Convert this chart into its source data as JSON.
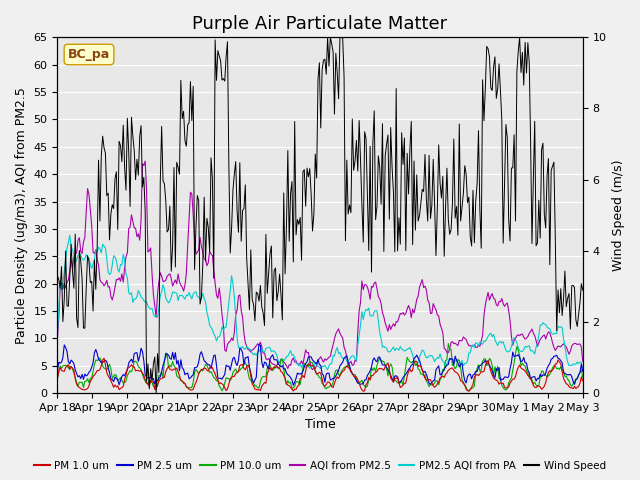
{
  "title": "Purple Air Particulate Matter",
  "location_label": "BC_pa",
  "xlabel": "Time",
  "ylabel_left": "Particle Density (ug/m3), AQI from PM2.5",
  "ylabel_right": "Wind Speed (m/s)",
  "ylim_left": [
    0,
    65
  ],
  "ylim_right": [
    0,
    10.0
  ],
  "yticks_left": [
    0,
    5,
    10,
    15,
    20,
    25,
    30,
    35,
    40,
    45,
    50,
    55,
    60,
    65
  ],
  "yticks_right": [
    0.0,
    2.0,
    4.0,
    6.0,
    8.0,
    10.0
  ],
  "xtick_positions": [
    0,
    1,
    2,
    3,
    4,
    5,
    6,
    7,
    8,
    9,
    10,
    11,
    12,
    13,
    14,
    15
  ],
  "xtick_labels": [
    "Apr 18",
    "Apr 19",
    "Apr 20",
    "Apr 21",
    "Apr 22",
    "Apr 23",
    "Apr 24",
    "Apr 25",
    "Apr 26",
    "Apr 27",
    "Apr 28",
    "Apr 29",
    "Apr 30",
    "May 1",
    "May 2",
    "May 3"
  ],
  "n_points": 384,
  "background_color": "#f0f0f0",
  "plot_bg_color": "#e8e8e8",
  "colors": {
    "pm1": "#cc0000",
    "pm25": "#0000cc",
    "pm10": "#00aa00",
    "aqi_pm25": "#aa00aa",
    "aqi_pa": "#00cccc",
    "wind": "#000000"
  },
  "legend_entries": [
    "PM 1.0 um",
    "PM 2.5 um",
    "PM 10.0 um",
    "AQI from PM2.5",
    "PM2.5 AQI from PA",
    "Wind Speed"
  ],
  "grid_color": "#ffffff",
  "title_fontsize": 13,
  "label_fontsize": 9,
  "tick_fontsize": 8
}
